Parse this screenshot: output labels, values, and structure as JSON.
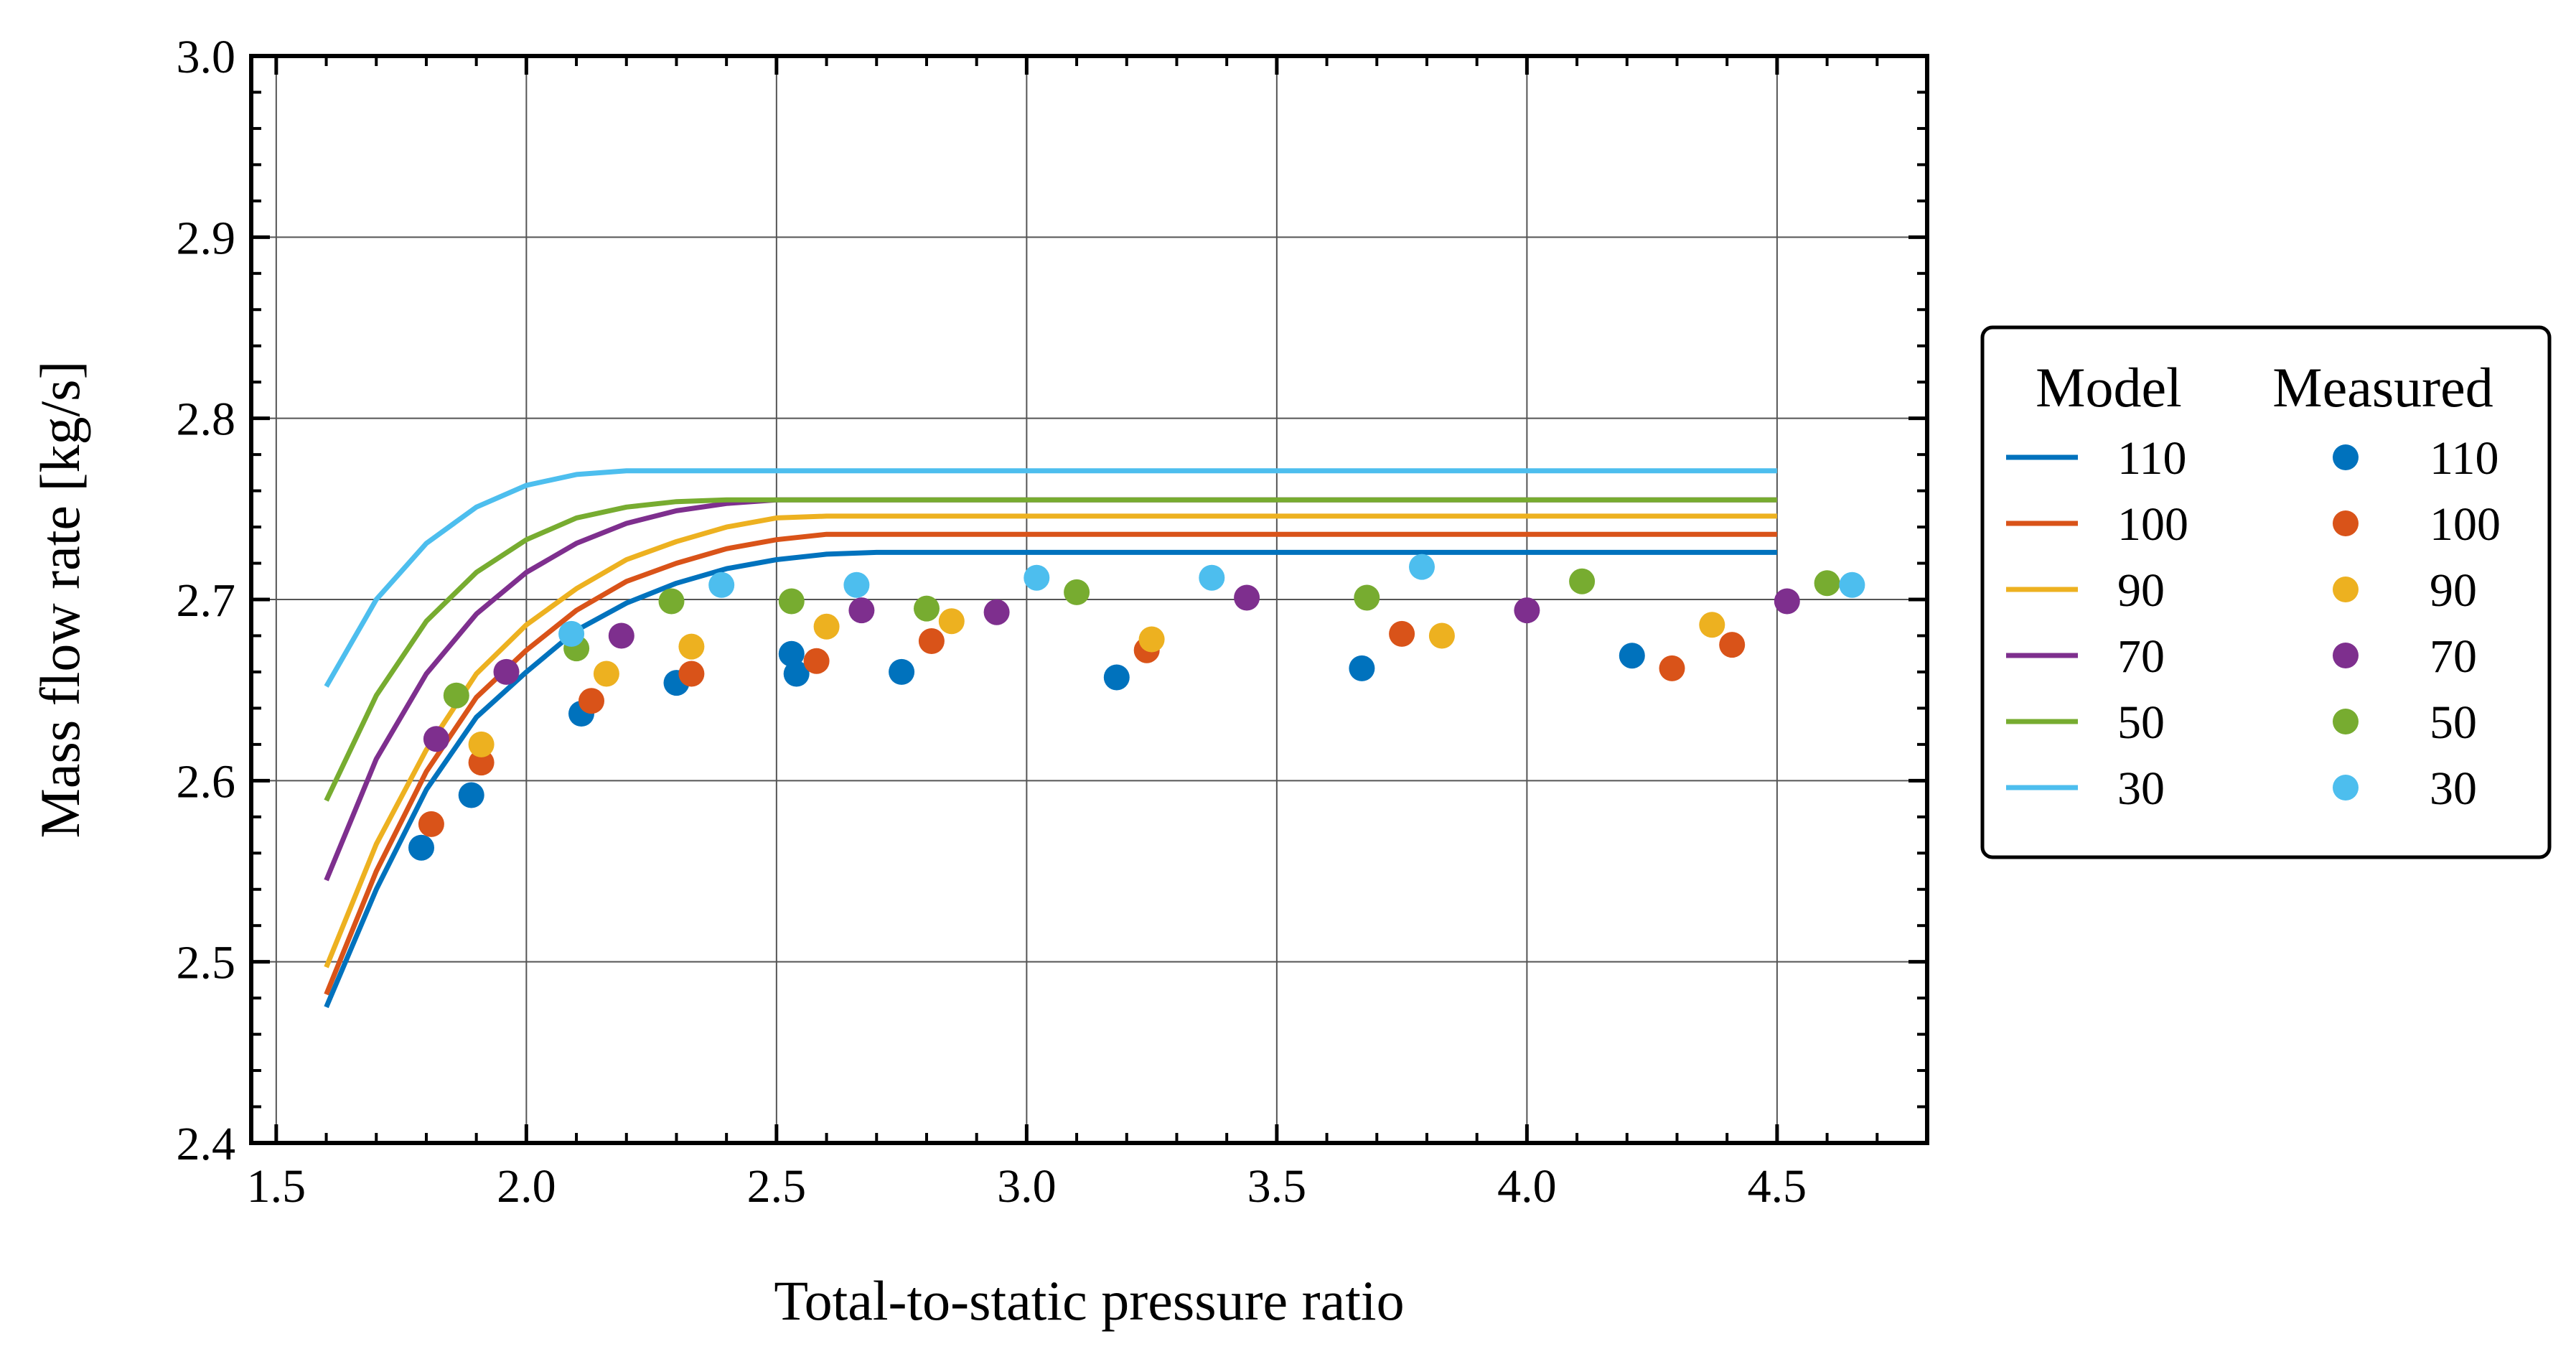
{
  "chart_data": {
    "type": "line",
    "title": "",
    "xlabel": "Total-to-static pressure ratio",
    "ylabel": "Mass flow rate [kg/s]",
    "xlim": [
      1.45,
      4.8
    ],
    "ylim": [
      2.4,
      3.0
    ],
    "x_ticks": [
      1.5,
      2.0,
      2.5,
      3.0,
      3.5,
      4.0,
      4.5
    ],
    "x_tick_labels": [
      "1.5",
      "2.0",
      "2.5",
      "3.0",
      "3.5",
      "4.0",
      "4.5"
    ],
    "y_ticks": [
      2.4,
      2.5,
      2.6,
      2.7,
      2.8,
      2.9,
      3.0
    ],
    "y_tick_labels": [
      "2.4",
      "2.5",
      "2.6",
      "2.7",
      "2.8",
      "2.9",
      "3.0"
    ],
    "grid": true,
    "legend": {
      "placement": "right, outside plot area",
      "model_header": "Model",
      "measured_header": "Measured"
    },
    "model_series": [
      {
        "name": "110",
        "color": "#0072BD",
        "x": [
          1.6,
          1.7,
          1.8,
          1.9,
          2.0,
          2.1,
          2.2,
          2.3,
          2.4,
          2.5,
          2.6,
          2.7,
          4.5
        ],
        "y": [
          2.475,
          2.54,
          2.595,
          2.635,
          2.66,
          2.683,
          2.698,
          2.709,
          2.717,
          2.722,
          2.725,
          2.726,
          2.726
        ]
      },
      {
        "name": "100",
        "color": "#D95319",
        "x": [
          1.6,
          1.7,
          1.8,
          1.9,
          2.0,
          2.1,
          2.2,
          2.3,
          2.4,
          2.5,
          2.6,
          4.5
        ],
        "y": [
          2.482,
          2.55,
          2.605,
          2.646,
          2.672,
          2.694,
          2.71,
          2.72,
          2.728,
          2.733,
          2.736,
          2.736
        ]
      },
      {
        "name": "90",
        "color": "#EDB120",
        "x": [
          1.6,
          1.7,
          1.8,
          1.9,
          2.0,
          2.1,
          2.2,
          2.3,
          2.4,
          2.5,
          2.6,
          4.5
        ],
        "y": [
          2.497,
          2.565,
          2.617,
          2.659,
          2.686,
          2.706,
          2.722,
          2.732,
          2.74,
          2.745,
          2.746,
          2.746
        ]
      },
      {
        "name": "70",
        "color": "#7E2F8E",
        "x": [
          1.6,
          1.7,
          1.8,
          1.9,
          2.0,
          2.1,
          2.2,
          2.3,
          2.4,
          2.5,
          4.5
        ],
        "y": [
          2.545,
          2.612,
          2.659,
          2.692,
          2.715,
          2.731,
          2.742,
          2.749,
          2.753,
          2.755,
          2.755
        ]
      },
      {
        "name": "50",
        "color": "#77AC30",
        "x": [
          1.6,
          1.7,
          1.8,
          1.9,
          2.0,
          2.1,
          2.2,
          2.3,
          2.4,
          4.5
        ],
        "y": [
          2.589,
          2.647,
          2.688,
          2.715,
          2.733,
          2.745,
          2.751,
          2.754,
          2.755,
          2.755
        ]
      },
      {
        "name": "30",
        "color": "#4DBEEE",
        "x": [
          1.6,
          1.7,
          1.8,
          1.9,
          2.0,
          2.1,
          2.2,
          4.5
        ],
        "y": [
          2.652,
          2.7,
          2.731,
          2.751,
          2.763,
          2.769,
          2.771,
          2.771
        ]
      }
    ],
    "measured_series": [
      {
        "name": "110",
        "color": "#0072BD",
        "x": [
          1.79,
          1.89,
          2.11,
          2.3,
          2.53,
          2.54,
          2.75,
          3.18,
          3.67,
          4.21
        ],
        "y": [
          2.563,
          2.592,
          2.637,
          2.654,
          2.67,
          2.659,
          2.66,
          2.657,
          2.662,
          2.669
        ]
      },
      {
        "name": "100",
        "color": "#D95319",
        "x": [
          1.81,
          1.91,
          2.13,
          2.33,
          2.58,
          2.81,
          3.24,
          3.75,
          4.29,
          4.41
        ],
        "y": [
          2.576,
          2.61,
          2.644,
          2.659,
          2.666,
          2.677,
          2.672,
          2.681,
          2.662,
          2.675
        ]
      },
      {
        "name": "90",
        "color": "#EDB120",
        "x": [
          1.91,
          2.16,
          2.33,
          2.6,
          2.85,
          3.25,
          3.83,
          4.37
        ],
        "y": [
          2.62,
          2.659,
          2.674,
          2.685,
          2.688,
          2.678,
          2.68,
          2.686
        ]
      },
      {
        "name": "70",
        "color": "#7E2F8E",
        "x": [
          1.82,
          1.96,
          2.19,
          2.67,
          2.94,
          3.44,
          4.0,
          4.52
        ],
        "y": [
          2.623,
          2.66,
          2.68,
          2.694,
          2.693,
          2.701,
          2.694,
          2.699
        ]
      },
      {
        "name": "50",
        "color": "#77AC30",
        "x": [
          1.86,
          2.1,
          2.29,
          2.53,
          2.8,
          3.1,
          3.68,
          4.11,
          4.6
        ],
        "y": [
          2.647,
          2.673,
          2.699,
          2.699,
          2.695,
          2.704,
          2.701,
          2.71,
          2.709
        ]
      },
      {
        "name": "30",
        "color": "#4DBEEE",
        "x": [
          2.09,
          2.39,
          2.66,
          3.02,
          3.37,
          3.79,
          4.65
        ],
        "y": [
          2.681,
          2.708,
          2.708,
          2.712,
          2.712,
          2.718,
          2.708
        ]
      }
    ]
  }
}
